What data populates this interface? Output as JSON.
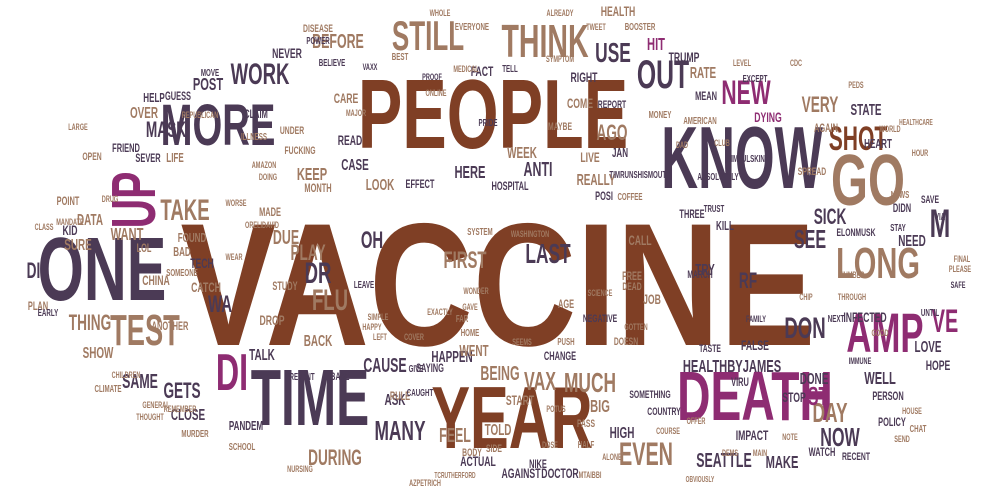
{
  "colors": {
    "brown": "#7f3f25",
    "purple": "#4b3a55",
    "magenta": "#8e2c72",
    "tan": "#a07a62"
  },
  "words": [
    {
      "text": "VACCINE",
      "color": "brown"
    },
    {
      "text": "PEOPLE",
      "color": "brown"
    },
    {
      "text": "KNOW",
      "color": "purple"
    },
    {
      "text": "ONE",
      "color": "purple"
    },
    {
      "text": "YEAR",
      "color": "brown"
    },
    {
      "text": "DEATH",
      "color": "magenta"
    },
    {
      "text": "TIME",
      "color": "purple"
    },
    {
      "text": "MORE",
      "color": "purple"
    },
    {
      "text": "THINK",
      "color": "tan"
    },
    {
      "text": "STILL",
      "color": "tan"
    },
    {
      "text": "UP",
      "color": "magenta"
    },
    {
      "text": "GO",
      "color": "tan"
    },
    {
      "text": "LONG",
      "color": "tan"
    },
    {
      "text": "AMP",
      "color": "magenta"
    },
    {
      "text": "TEST",
      "color": "tan"
    },
    {
      "text": "SHOT",
      "color": "brown"
    },
    {
      "text": "OUT",
      "color": "purple"
    },
    {
      "text": "NEW",
      "color": "magenta"
    },
    {
      "text": "WORK",
      "color": "purple"
    },
    {
      "text": "USE",
      "color": "purple"
    },
    {
      "text": "FLU",
      "color": "tan"
    },
    {
      "text": "DR",
      "color": "purple"
    },
    {
      "text": "DI",
      "color": "magenta"
    },
    {
      "text": "DON",
      "color": "purple"
    },
    {
      "text": "EVEN",
      "color": "tan"
    },
    {
      "text": "SEATTLE",
      "color": "purple"
    },
    {
      "text": "MUCH",
      "color": "tan"
    },
    {
      "text": "VAX",
      "color": "tan"
    },
    {
      "text": "DAY",
      "color": "tan"
    },
    {
      "text": "NOW",
      "color": "purple"
    },
    {
      "text": "MANY",
      "color": "purple"
    },
    {
      "text": "LAST",
      "color": "purple"
    },
    {
      "text": "FIRST",
      "color": "tan"
    },
    {
      "text": "M",
      "color": "purple"
    },
    {
      "text": "VE",
      "color": "magenta"
    },
    {
      "text": "ST",
      "color": "magenta"
    },
    {
      "text": "SEE",
      "color": "purple"
    },
    {
      "text": "SICK",
      "color": "purple"
    },
    {
      "text": "HEALTHBYJAMES",
      "color": "purple"
    },
    {
      "text": "GETS",
      "color": "purple"
    },
    {
      "text": "TAKE",
      "color": "tan"
    },
    {
      "text": "MASK",
      "color": "purple"
    },
    {
      "text": "THING",
      "color": "tan"
    },
    {
      "text": "PLAY",
      "color": "tan"
    },
    {
      "text": "OH",
      "color": "purple"
    },
    {
      "text": "RF",
      "color": "purple"
    },
    {
      "text": "KEEP",
      "color": "tan"
    },
    {
      "text": "AGO",
      "color": "tan"
    },
    {
      "text": "ANTI",
      "color": "purple"
    },
    {
      "text": "VERY",
      "color": "tan"
    },
    {
      "text": "WA",
      "color": "purple"
    },
    {
      "text": "DUE",
      "color": "tan"
    },
    {
      "text": "WANT",
      "color": "tan"
    },
    {
      "text": "DIE",
      "color": "purple"
    },
    {
      "text": "SAME",
      "color": "purple"
    },
    {
      "text": "SHOW",
      "color": "tan"
    },
    {
      "text": "BEING",
      "color": "tan"
    },
    {
      "text": "CAUSE",
      "color": "purple"
    },
    {
      "text": "FEEL",
      "color": "tan"
    },
    {
      "text": "DURING",
      "color": "tan"
    },
    {
      "text": "ASK",
      "color": "purple"
    },
    {
      "text": "MAKE",
      "color": "purple"
    },
    {
      "text": "BEFORE",
      "color": "tan"
    },
    {
      "text": "HIT",
      "color": "magenta"
    },
    {
      "text": "RATE",
      "color": "tan"
    },
    {
      "text": "HEALTH",
      "color": "tan"
    },
    {
      "text": "POST",
      "color": "purple"
    },
    {
      "text": "CASE",
      "color": "purple"
    },
    {
      "text": "HERE",
      "color": "purple"
    },
    {
      "text": "REALLY",
      "color": "tan"
    },
    {
      "text": "WEEK",
      "color": "tan"
    },
    {
      "text": "LOOK",
      "color": "tan"
    },
    {
      "text": "STATE",
      "color": "purple"
    },
    {
      "text": "NEED",
      "color": "purple"
    },
    {
      "text": "INFECTED",
      "color": "purple"
    },
    {
      "text": "TALK",
      "color": "purple"
    },
    {
      "text": "BACK",
      "color": "tan"
    },
    {
      "text": "HAPPEN",
      "color": "purple"
    },
    {
      "text": "WENT",
      "color": "tan"
    },
    {
      "text": "TOLD",
      "color": "tan"
    },
    {
      "text": "BIG",
      "color": "tan"
    },
    {
      "text": "HIGH",
      "color": "purple"
    },
    {
      "text": "DONE",
      "color": "purple"
    },
    {
      "text": "WELL",
      "color": "purple"
    },
    {
      "text": "LOVE",
      "color": "purple"
    },
    {
      "text": "HOPE",
      "color": "purple"
    },
    {
      "text": "CLOSE",
      "color": "purple"
    },
    {
      "text": "DATA",
      "color": "tan"
    },
    {
      "text": "SURE",
      "color": "tan"
    },
    {
      "text": "KID",
      "color": "purple"
    },
    {
      "text": "CHINA",
      "color": "tan"
    },
    {
      "text": "TECH",
      "color": "purple"
    },
    {
      "text": "CATCH",
      "color": "tan"
    },
    {
      "text": "FOUND",
      "color": "tan"
    },
    {
      "text": "BAD",
      "color": "tan"
    },
    {
      "text": "LIFE",
      "color": "tan"
    },
    {
      "text": "HELP",
      "color": "purple"
    },
    {
      "text": "OVER",
      "color": "tan"
    },
    {
      "text": "NEVER",
      "color": "purple"
    },
    {
      "text": "CARE",
      "color": "tan"
    },
    {
      "text": "READ",
      "color": "purple"
    },
    {
      "text": "LIVE",
      "color": "tan"
    },
    {
      "text": "JAN",
      "color": "purple"
    },
    {
      "text": "COME",
      "color": "tan"
    },
    {
      "text": "RIGHT",
      "color": "purple"
    },
    {
      "text": "TRUMP",
      "color": "purple"
    },
    {
      "text": "DYING",
      "color": "magenta"
    },
    {
      "text": "FACT",
      "color": "purple"
    },
    {
      "text": "DISEASE",
      "color": "tan"
    },
    {
      "text": "POINT",
      "color": "tan"
    },
    {
      "text": "PLAN",
      "color": "tan"
    },
    {
      "text": "SAYING",
      "color": "purple"
    },
    {
      "text": "CHANGE",
      "color": "purple"
    },
    {
      "text": "START",
      "color": "tan"
    },
    {
      "text": "ACTUAL",
      "color": "purple"
    },
    {
      "text": "AGAINST",
      "color": "purple"
    },
    {
      "text": "DOCTOR",
      "color": "purple"
    },
    {
      "text": "NIKE",
      "color": "purple"
    },
    {
      "text": "RULE",
      "color": "tan"
    },
    {
      "text": "PANDEM",
      "color": "purple"
    },
    {
      "text": "IMPACT",
      "color": "purple"
    },
    {
      "text": "STOP",
      "color": "purple"
    },
    {
      "text": "DROP",
      "color": "tan"
    },
    {
      "text": "FALSE",
      "color": "purple"
    },
    {
      "text": "JOB",
      "color": "tan"
    },
    {
      "text": "TRY",
      "color": "purple"
    },
    {
      "text": "CALL",
      "color": "tan"
    },
    {
      "text": "FREE",
      "color": "tan"
    },
    {
      "text": "MONTH",
      "color": "tan"
    },
    {
      "text": "STUDY",
      "color": "tan"
    },
    {
      "text": "MADE",
      "color": "tan"
    },
    {
      "text": "HOSPITAL",
      "color": "purple"
    },
    {
      "text": "NEGATIVE",
      "color": "purple"
    },
    {
      "text": "AGE",
      "color": "tan"
    },
    {
      "text": "KILL",
      "color": "purple"
    },
    {
      "text": "TIMRUNSHISMOUTH",
      "color": "purple"
    },
    {
      "text": "SIMFULSKIN",
      "color": "purple"
    },
    {
      "text": "ELONMUSK",
      "color": "purple"
    },
    {
      "text": "WASHINGTON",
      "color": "tan"
    },
    {
      "text": "ONLINE",
      "color": "tan"
    },
    {
      "text": "ALREADY",
      "color": "tan"
    },
    {
      "text": "BOOSTER",
      "color": "tan"
    },
    {
      "text": "EVERYONE",
      "color": "tan"
    },
    {
      "text": "MONEY",
      "color": "tan"
    },
    {
      "text": "AMERICAN",
      "color": "tan"
    },
    {
      "text": "HEART",
      "color": "purple"
    },
    {
      "text": "POLICY",
      "color": "purple"
    },
    {
      "text": "PERSON",
      "color": "purple"
    },
    {
      "text": "VIRU",
      "color": "purple"
    },
    {
      "text": "COUNTRY",
      "color": "purple"
    },
    {
      "text": "SOMETHING",
      "color": "purple"
    },
    {
      "text": "SCHOOL",
      "color": "tan"
    },
    {
      "text": "MURDER",
      "color": "tan"
    },
    {
      "text": "CLIMATE",
      "color": "tan"
    },
    {
      "text": "GENERAL",
      "color": "tan"
    },
    {
      "text": "MANDATE",
      "color": "tan"
    },
    {
      "text": "CLAIM",
      "color": "purple"
    },
    {
      "text": "GUESS",
      "color": "purple"
    },
    {
      "text": "SEVER",
      "color": "purple"
    },
    {
      "text": "FRIEND",
      "color": "purple"
    },
    {
      "text": "PRIDE",
      "color": "purple"
    },
    {
      "text": "SOMEONE",
      "color": "tan"
    },
    {
      "text": "ANOTHER",
      "color": "tan"
    },
    {
      "text": "MAYBE",
      "color": "tan"
    },
    {
      "text": "SPREAD",
      "color": "tan"
    },
    {
      "text": "EXCEPT",
      "color": "purple"
    },
    {
      "text": "MEAN",
      "color": "purple"
    },
    {
      "text": "AGAIN",
      "color": "tan"
    },
    {
      "text": "SAVE",
      "color": "purple"
    },
    {
      "text": "BASE",
      "color": "purple"
    },
    {
      "text": "PREVENT",
      "color": "purple"
    },
    {
      "text": "TASTE",
      "color": "purple"
    },
    {
      "text": "THREE",
      "color": "purple"
    },
    {
      "text": "MARCH",
      "color": "purple"
    },
    {
      "text": "OPEN",
      "color": "tan"
    },
    {
      "text": "SYSTEM",
      "color": "tan"
    },
    {
      "text": "NEWS",
      "color": "tan"
    },
    {
      "text": "FINAL",
      "color": "tan"
    },
    {
      "text": "PLEASE",
      "color": "tan"
    },
    {
      "text": "CHAT",
      "color": "tan"
    },
    {
      "text": "BODY",
      "color": "tan"
    },
    {
      "text": "SIDE",
      "color": "tan"
    },
    {
      "text": "PASS",
      "color": "tan"
    },
    {
      "text": "HALF",
      "color": "tan"
    },
    {
      "text": "EFFECT",
      "color": "purple"
    },
    {
      "text": "POSI",
      "color": "purple"
    },
    {
      "text": "FUCKING",
      "color": "tan"
    },
    {
      "text": "UNDER",
      "color": "tan"
    },
    {
      "text": "ABSOLUTELY",
      "color": "purple"
    },
    {
      "text": "LOL",
      "color": "tan"
    },
    {
      "text": "CLASS",
      "color": "tan"
    },
    {
      "text": "COFFEE",
      "color": "tan"
    },
    {
      "text": "DEAD",
      "color": "tan"
    },
    {
      "text": "DOESN",
      "color": "tan"
    },
    {
      "text": "PUSH",
      "color": "tan"
    },
    {
      "text": "HOME",
      "color": "tan"
    },
    {
      "text": "EARLY",
      "color": "purple"
    },
    {
      "text": "DIDN",
      "color": "purple"
    },
    {
      "text": "WATCH",
      "color": "purple"
    },
    {
      "text": "RECENT",
      "color": "purple"
    },
    {
      "text": "TRUST",
      "color": "purple"
    },
    {
      "text": "BEST",
      "color": "tan"
    },
    {
      "text": "LEAVE",
      "color": "purple"
    },
    {
      "text": "HAPPY",
      "color": "tan"
    },
    {
      "text": "SIMPLE",
      "color": "tan"
    },
    {
      "text": "ILLNESS",
      "color": "tan"
    },
    {
      "text": "REPORT",
      "color": "purple"
    },
    {
      "text": "TELL",
      "color": "purple"
    },
    {
      "text": "BELIEVE",
      "color": "purple"
    },
    {
      "text": "POWER",
      "color": "purple"
    },
    {
      "text": "MOVE",
      "color": "purple"
    },
    {
      "text": "NEXT",
      "color": "purple"
    },
    {
      "text": "SAFE",
      "color": "purple"
    },
    {
      "text": "STAY",
      "color": "purple"
    },
    {
      "text": "PROOF",
      "color": "purple"
    },
    {
      "text": "VAXX",
      "color": "purple"
    },
    {
      "text": "LARGE",
      "color": "tan"
    },
    {
      "text": "THOUGHT",
      "color": "tan"
    },
    {
      "text": "REMEMBER",
      "color": "tan"
    },
    {
      "text": "MEDICAL",
      "color": "tan"
    },
    {
      "text": "WHOLE",
      "color": "tan"
    },
    {
      "text": "TWEET",
      "color": "tan"
    },
    {
      "text": "LEVEL",
      "color": "tan"
    },
    {
      "text": "CDC",
      "color": "tan"
    },
    {
      "text": "PEDS",
      "color": "tan"
    },
    {
      "text": "WORLD",
      "color": "tan"
    },
    {
      "text": "HOUR",
      "color": "tan"
    },
    {
      "text": "VIA",
      "color": "purple"
    },
    {
      "text": "CHIP",
      "color": "tan"
    },
    {
      "text": "UNTIL",
      "color": "purple"
    },
    {
      "text": "THROUGH",
      "color": "tan"
    },
    {
      "text": "FAMILY",
      "color": "purple"
    },
    {
      "text": "IMMUNE",
      "color": "purple"
    },
    {
      "text": "OFFER",
      "color": "tan"
    },
    {
      "text": "GOTTEN",
      "color": "tan"
    },
    {
      "text": "COURSE",
      "color": "tan"
    },
    {
      "text": "POTUS",
      "color": "tan"
    },
    {
      "text": "GAVE",
      "color": "tan"
    },
    {
      "text": "SEEMS",
      "color": "tan"
    },
    {
      "text": "EXACTLY",
      "color": "tan"
    },
    {
      "text": "WONDER",
      "color": "tan"
    },
    {
      "text": "CAUGHT",
      "color": "purple"
    },
    {
      "text": "GIVE",
      "color": "purple"
    },
    {
      "text": "AZPETRICH",
      "color": "tan"
    },
    {
      "text": "TCRUTHERFORD",
      "color": "tan"
    },
    {
      "text": "MTAIBBI",
      "color": "tan"
    },
    {
      "text": "REPUBLICAN",
      "color": "tan"
    },
    {
      "text": "AMAZON",
      "color": "tan"
    },
    {
      "text": "NURSING",
      "color": "tan"
    },
    {
      "text": "HEALTHCARE",
      "color": "tan"
    },
    {
      "text": "OBVIOUSLY",
      "color": "tan"
    },
    {
      "text": "ORELIDAVID",
      "color": "tan"
    },
    {
      "text": "DRUG",
      "color": "tan"
    },
    {
      "text": "CHILDREN",
      "color": "tan"
    },
    {
      "text": "SYMPTOM",
      "color": "tan"
    },
    {
      "text": "DOING",
      "color": "tan"
    },
    {
      "text": "MAJOR",
      "color": "tan"
    },
    {
      "text": "SCIENCE",
      "color": "tan"
    },
    {
      "text": "DOSE",
      "color": "tan"
    },
    {
      "text": "ALONE",
      "color": "tan"
    },
    {
      "text": "WEAR",
      "color": "tan"
    },
    {
      "text": "FAR",
      "color": "tan"
    },
    {
      "text": "COVER",
      "color": "tan"
    },
    {
      "text": "LEFT",
      "color": "tan"
    },
    {
      "text": "DAD",
      "color": "tan"
    },
    {
      "text": "CLUB",
      "color": "tan"
    },
    {
      "text": "WORSE",
      "color": "tan"
    },
    {
      "text": "GOOD",
      "color": "tan"
    },
    {
      "text": "HOUSE",
      "color": "tan"
    },
    {
      "text": "SEND",
      "color": "tan"
    },
    {
      "text": "NOTE",
      "color": "tan"
    },
    {
      "text": "MAIN",
      "color": "tan"
    },
    {
      "text": "DEMS",
      "color": "tan"
    },
    {
      "text": "NUMBER",
      "color": "tan"
    }
  ]
}
